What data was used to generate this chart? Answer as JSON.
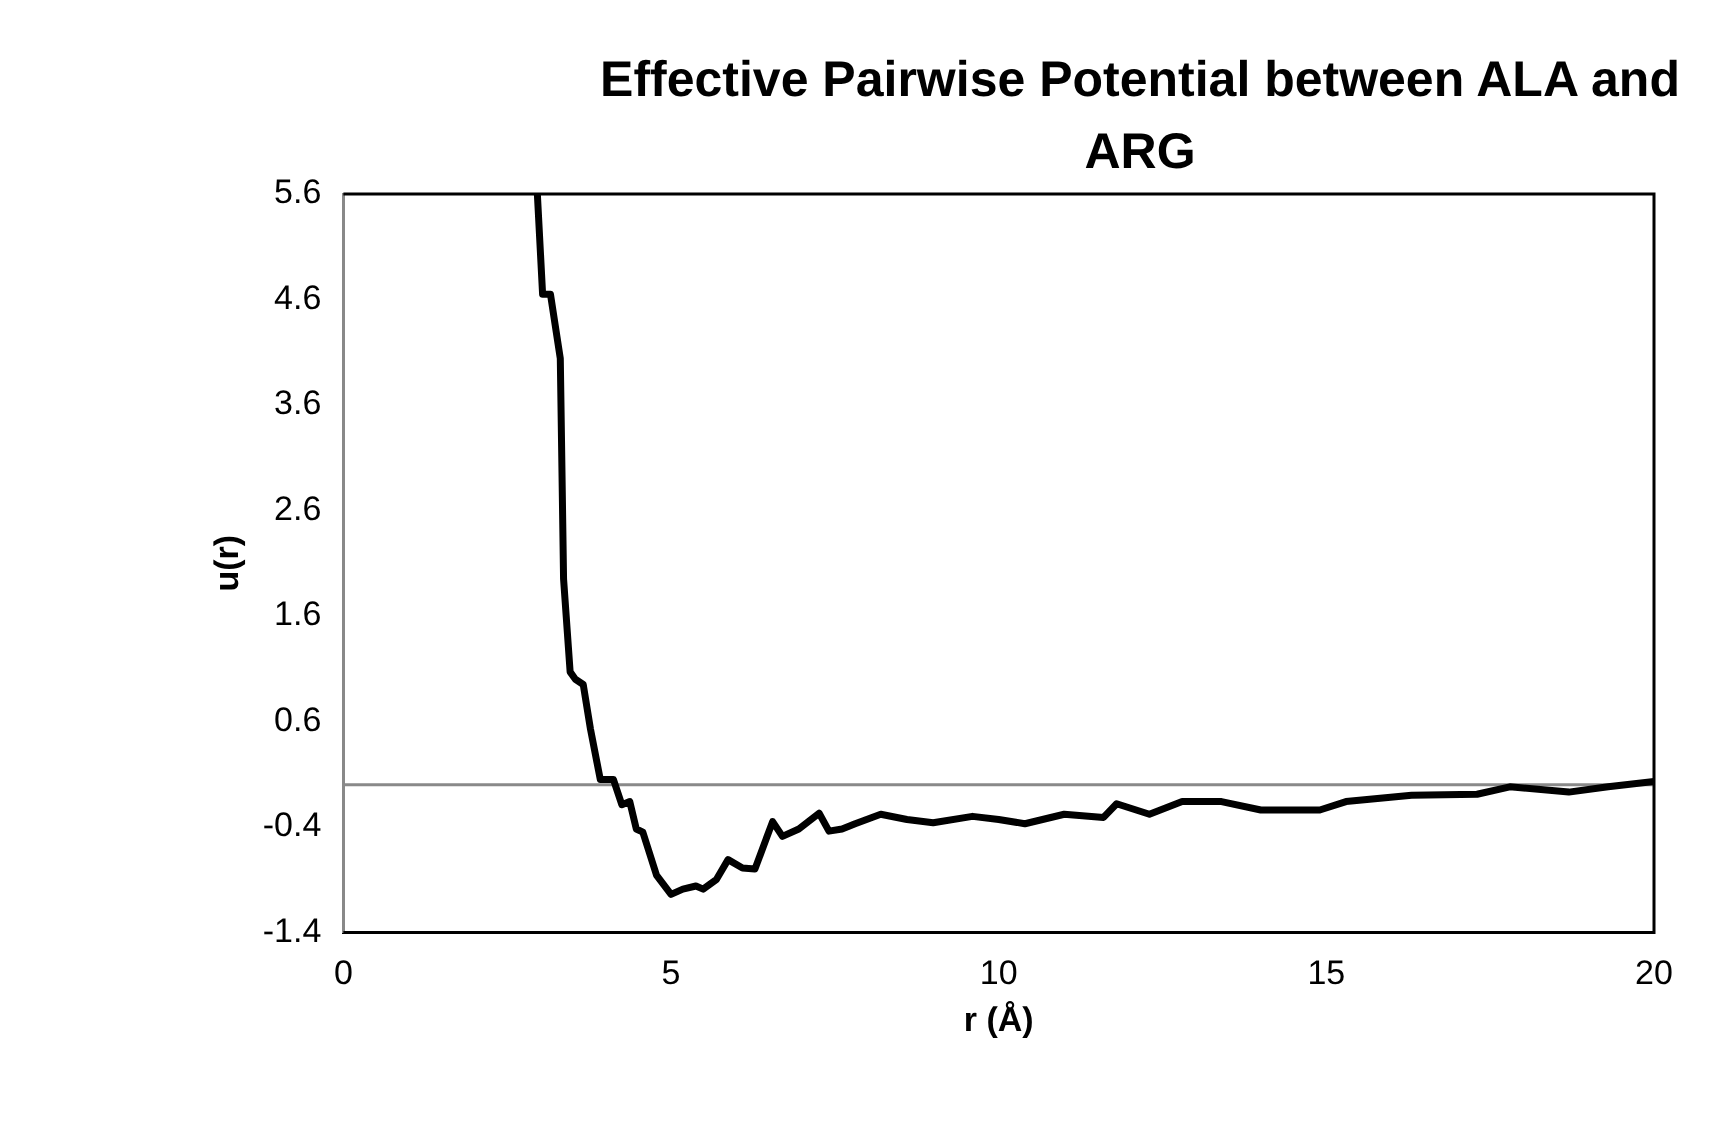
{
  "chart_data": {
    "type": "line",
    "title": "Effective Pairwise Potential between ALA and ARG",
    "xlabel": "r (Å)",
    "ylabel": "u(r)",
    "x": [
      2.96,
      3.04,
      3.16,
      3.31,
      3.36,
      3.46,
      3.54,
      3.66,
      3.77,
      3.92,
      4.12,
      4.25,
      4.37,
      4.47,
      4.57,
      4.78,
      5.0,
      5.18,
      5.38,
      5.49,
      5.69,
      5.87,
      6.09,
      6.28,
      6.55,
      6.7,
      6.95,
      7.26,
      7.41,
      7.61,
      7.81,
      8.2,
      8.6,
      9.0,
      9.6,
      10.0,
      10.4,
      11.0,
      11.6,
      11.8,
      12.3,
      12.8,
      13.4,
      14.0,
      14.9,
      15.3,
      16.3,
      17.3,
      17.8,
      18.7,
      19.3,
      20.0
    ],
    "series": [
      {
        "color": "#000000",
        "values": [
          5.6,
          4.65,
          4.65,
          4.04,
          1.95,
          1.07,
          1.0,
          0.95,
          0.53,
          0.05,
          0.05,
          -0.19,
          -0.16,
          -0.42,
          -0.45,
          -0.86,
          -1.04,
          -0.99,
          -0.96,
          -0.99,
          -0.9,
          -0.71,
          -0.79,
          -0.8,
          -0.35,
          -0.49,
          -0.42,
          -0.27,
          -0.44,
          -0.42,
          -0.37,
          -0.28,
          -0.33,
          -0.36,
          -0.3,
          -0.33,
          -0.37,
          -0.28,
          -0.31,
          -0.18,
          -0.28,
          -0.16,
          -0.16,
          -0.24,
          -0.24,
          -0.16,
          -0.1,
          -0.09,
          -0.02,
          -0.07,
          -0.02,
          0.03
        ]
      }
    ],
    "xlim": [
      0,
      20
    ],
    "xticks": [
      0,
      5,
      10,
      15,
      20
    ],
    "ylim": [
      -1.4,
      5.6
    ],
    "yticks": [
      -1.4,
      -0.4,
      0.6,
      1.6,
      2.6,
      3.6,
      4.6,
      5.6
    ],
    "ref_lines": [
      {
        "axis": "y",
        "value": 0,
        "color": "#898989"
      }
    ],
    "grid": false,
    "legend": false,
    "marker": "none",
    "line_style": "solid"
  }
}
